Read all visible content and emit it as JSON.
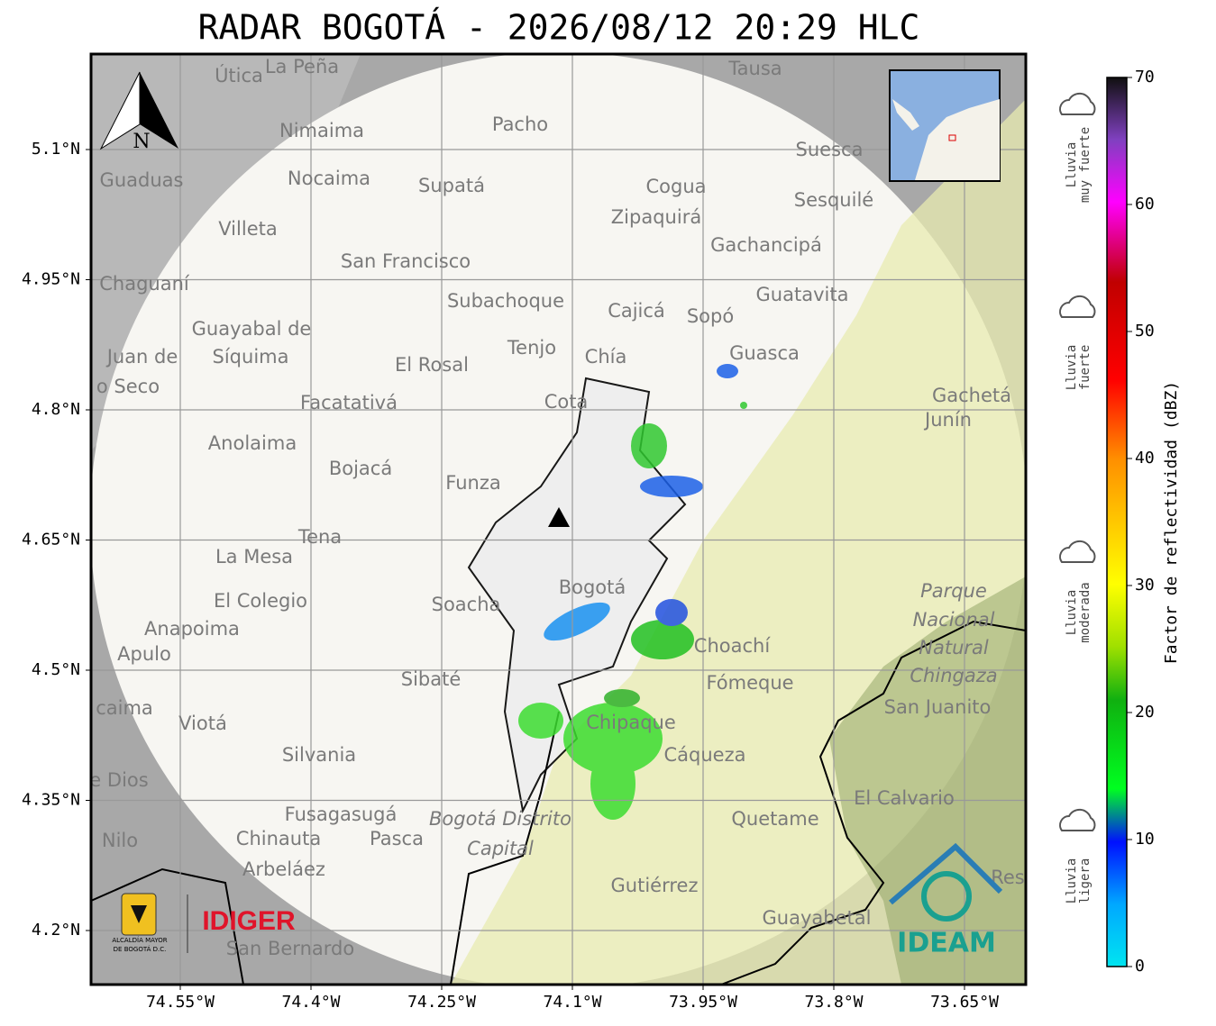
{
  "title": "RADAR BOGOTÁ - 2026/08/12 20:29 HLC",
  "map": {
    "lat_ticks": [
      {
        "value": 5.1,
        "label": "5.1°N"
      },
      {
        "value": 4.95,
        "label": "4.95°N"
      },
      {
        "value": 4.8,
        "label": "4.8°N"
      },
      {
        "value": 4.65,
        "label": "4.65°N"
      },
      {
        "value": 4.5,
        "label": "4.5°N"
      },
      {
        "value": 4.35,
        "label": "4.35°N"
      },
      {
        "value": 4.2,
        "label": "4.2°N"
      }
    ],
    "lon_ticks": [
      {
        "value": -74.55,
        "label": "74.55°W"
      },
      {
        "value": -74.4,
        "label": "74.4°W"
      },
      {
        "value": -74.25,
        "label": "74.25°W"
      },
      {
        "value": -74.1,
        "label": "74.1°W"
      },
      {
        "value": -73.95,
        "label": "73.95°W"
      },
      {
        "value": -73.8,
        "label": "73.8°W"
      },
      {
        "value": -73.65,
        "label": "73.65°W"
      }
    ],
    "places": [
      "Útica",
      "La Peña",
      "Tausa",
      "Pacho",
      "Nimaima",
      "Suesca",
      "Guaduas",
      "Nocaima",
      "Supatá",
      "Cogua",
      "Sesquilé",
      "Zipaquirá",
      "Villeta",
      "Gachancipá",
      "San Francisco",
      "Chaguaní",
      "Guatavita",
      "Subachoque",
      "Cajicá",
      "Sopó",
      "Guayabal de",
      "Síquima",
      "Tenjo",
      "Chía",
      "Guasca",
      "Juan de",
      "o Seco",
      "El Rosal",
      "Cota",
      "Gachetá",
      "Junín",
      "Facatativá",
      "Anolaima",
      "Bojacá",
      "Funza",
      "Tena",
      "La Mesa",
      "Bogotá",
      "El Colegio",
      "Soacha",
      "Parque",
      "Nacional",
      "Natural",
      "Chingaza",
      "Anapoima",
      "Apulo",
      "Choachí",
      "Fómeque",
      "Sibaté",
      "San Juanito",
      "caima",
      "Viotá",
      "Chipaque",
      "Silvania",
      "Cáqueza",
      "e Dios",
      "El Calvario",
      "Fusagasugá",
      "Bogotá Distrito",
      "Capital",
      "Quetame",
      "Nilo",
      "Chinauta",
      "Pasca",
      "Arbeláez",
      "Gutiérrez",
      "Guayabetal",
      "San Bernardo",
      "Res"
    ],
    "north": "N"
  },
  "colorbar": {
    "label": "Factor de reflectividad (dBZ)",
    "lim": [
      0,
      70
    ],
    "ticks": [
      0,
      10,
      20,
      30,
      40,
      50,
      60,
      70
    ]
  },
  "rain_levels": [
    [
      "Lluvia",
      "muy fuerte"
    ],
    [
      "Lluvia",
      "fuerte"
    ],
    [
      "Lluvia",
      "moderada"
    ],
    [
      "Lluvia",
      "ligera"
    ]
  ],
  "logos": {
    "idiger": "IDIGER",
    "alcaldia": [
      "ALCALDÍA MAYOR",
      "DE BOGOTÁ D.C."
    ],
    "ideam": "IDEAM"
  }
}
